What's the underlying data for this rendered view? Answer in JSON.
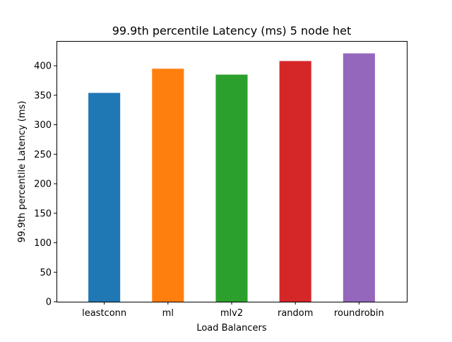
{
  "chart_data": {
    "type": "bar",
    "title": "99.9th percentile Latency (ms) 5 node het",
    "xlabel": "Load Balancers",
    "ylabel": "99.9th percentile Latency (ms)",
    "categories": [
      "leastconn",
      "ml",
      "mlv2",
      "random",
      "roundrobin"
    ],
    "values": [
      354,
      395,
      385,
      408,
      421
    ],
    "colors": [
      "#1f77b4",
      "#ff7f0e",
      "#2ca02c",
      "#d62728",
      "#9467bd"
    ],
    "ylim": [
      0,
      442
    ],
    "yticks": [
      0,
      50,
      100,
      150,
      200,
      250,
      300,
      350,
      400
    ],
    "grid": false,
    "legend": false
  }
}
